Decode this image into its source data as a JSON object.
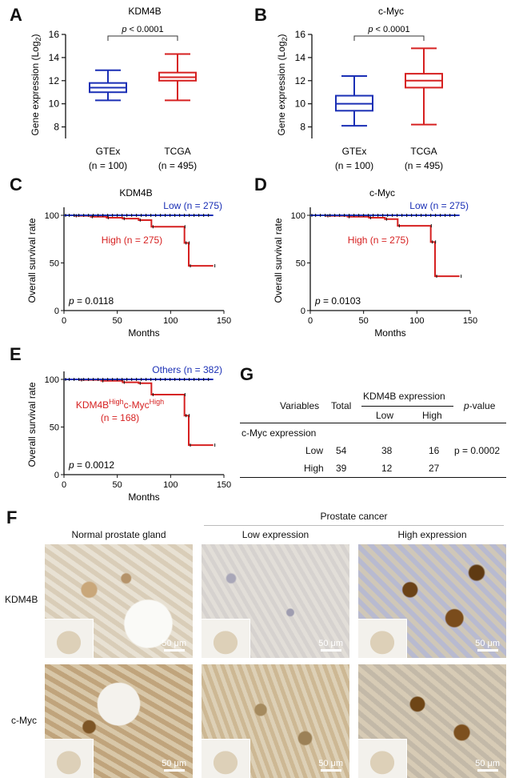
{
  "panels": {
    "A": "A",
    "B": "B",
    "C": "C",
    "D": "D",
    "E": "E",
    "F": "F",
    "G": "G"
  },
  "colors": {
    "low": "#1a2fb5",
    "high": "#d62020",
    "axis": "#111111"
  },
  "box_plots": [
    {
      "panel": "A",
      "title": "KDM4B",
      "ylabel": "Gene expression (Log",
      "ylabel_sub": "2",
      "ylabel_close": ")",
      "ylim": [
        7,
        16
      ],
      "yticks": [
        8,
        10,
        12,
        14,
        16
      ],
      "pvalue_label": "p",
      "pvalue_text": " < 0.0001",
      "groups": [
        {
          "name": "GTEx",
          "n_label": "(n = 100)",
          "color": "#1a2fb5",
          "min": 10.3,
          "q1": 11.0,
          "median": 11.4,
          "q3": 11.8,
          "max": 12.9
        },
        {
          "name": "TCGA",
          "n_label": "(n = 495)",
          "color": "#d62020",
          "min": 10.3,
          "q1": 12.0,
          "median": 12.3,
          "q3": 12.7,
          "max": 14.3
        }
      ]
    },
    {
      "panel": "B",
      "title": "c-Myc",
      "ylabel": "Gene expression (Log",
      "ylabel_sub": "2",
      "ylabel_close": ")",
      "ylim": [
        7,
        16
      ],
      "yticks": [
        8,
        10,
        12,
        14,
        16
      ],
      "pvalue_label": "p",
      "pvalue_text": " < 0.0001",
      "groups": [
        {
          "name": "GTEx",
          "n_label": "(n = 100)",
          "color": "#1a2fb5",
          "min": 8.1,
          "q1": 9.4,
          "median": 10.0,
          "q3": 10.7,
          "max": 12.4
        },
        {
          "name": "TCGA",
          "n_label": "(n = 495)",
          "color": "#d62020",
          "min": 8.2,
          "q1": 11.4,
          "median": 12.0,
          "q3": 12.6,
          "max": 14.8
        }
      ]
    }
  ],
  "survival_plots": [
    {
      "panel": "C",
      "title": "KDM4B",
      "ylabel": "Overall survival rate",
      "xlabel": "Months",
      "xlim": [
        0,
        150
      ],
      "ylim": [
        0,
        100
      ],
      "xticks": [
        0,
        50,
        100,
        150
      ],
      "yticks": [
        0,
        50,
        100
      ],
      "pvalue_label": "p",
      "pvalue_text": " = 0.0118",
      "low": {
        "label": "Low (n = 275)",
        "steps": [
          [
            0,
            100
          ],
          [
            140,
            100
          ]
        ]
      },
      "high": {
        "label": "High (n = 275)",
        "steps": [
          [
            0,
            100
          ],
          [
            10,
            99.5
          ],
          [
            25,
            98.5
          ],
          [
            40,
            97.5
          ],
          [
            55,
            96.5
          ],
          [
            70,
            95
          ],
          [
            82,
            88
          ],
          [
            112,
            88
          ],
          [
            113,
            71
          ],
          [
            116,
            71
          ],
          [
            117,
            47
          ],
          [
            140,
            47
          ]
        ]
      }
    },
    {
      "panel": "D",
      "title": "c-Myc",
      "ylabel": "Overall survival rate",
      "xlabel": "Months",
      "xlim": [
        0,
        150
      ],
      "ylim": [
        0,
        100
      ],
      "xticks": [
        0,
        50,
        100,
        150
      ],
      "yticks": [
        0,
        50,
        100
      ],
      "pvalue_label": "p",
      "pvalue_text": " = 0.0103",
      "low": {
        "label": "Low (n = 275)",
        "steps": [
          [
            0,
            100
          ],
          [
            140,
            100
          ]
        ]
      },
      "high": {
        "label": "High (n = 275)",
        "steps": [
          [
            0,
            100
          ],
          [
            15,
            99.5
          ],
          [
            35,
            98.5
          ],
          [
            55,
            97.5
          ],
          [
            70,
            96
          ],
          [
            82,
            89
          ],
          [
            112,
            89
          ],
          [
            113,
            72
          ],
          [
            116,
            72
          ],
          [
            117,
            36
          ],
          [
            140,
            36
          ]
        ]
      }
    },
    {
      "panel": "E",
      "title": "",
      "ylabel": "Overall survival rate",
      "xlabel": "Months",
      "xlim": [
        0,
        150
      ],
      "ylim": [
        0,
        100
      ],
      "xticks": [
        0,
        50,
        100,
        150
      ],
      "yticks": [
        0,
        50,
        100
      ],
      "pvalue_label": "p",
      "pvalue_text": " = 0.0012",
      "low": {
        "label": "Others (n = 382)",
        "steps": [
          [
            0,
            100
          ],
          [
            140,
            100
          ]
        ]
      },
      "high": {
        "label_parts": [
          "KDM4B",
          "High",
          "c-Myc",
          "High"
        ],
        "label_line2": "(n = 168)",
        "steps": [
          [
            0,
            100
          ],
          [
            15,
            99.5
          ],
          [
            35,
            98.5
          ],
          [
            55,
            97
          ],
          [
            70,
            96
          ],
          [
            82,
            84
          ],
          [
            112,
            84
          ],
          [
            113,
            62
          ],
          [
            116,
            62
          ],
          [
            117,
            31
          ],
          [
            140,
            31
          ]
        ]
      }
    }
  ],
  "table": {
    "col_variables": "Variables",
    "col_total": "Total",
    "col_group": "KDM4B expression",
    "col_low": "Low",
    "col_high": "High",
    "col_pvalue_italic": "p",
    "col_pvalue_rest": "-value",
    "section": "c-Myc expression",
    "rows": [
      {
        "label": "Low",
        "total": "54",
        "low": "38",
        "high": "16",
        "pvalue": "p = 0.0002"
      },
      {
        "label": "High",
        "total": "39",
        "low": "12",
        "high": "27",
        "pvalue": ""
      }
    ]
  },
  "ihc": {
    "group_header": "Prostate cancer",
    "col_headers": [
      "Normal prostate gland",
      "Low expression",
      "High expression"
    ],
    "row_labels": [
      "KDM4B",
      "c-Myc"
    ],
    "scale_label": "50 μm"
  }
}
